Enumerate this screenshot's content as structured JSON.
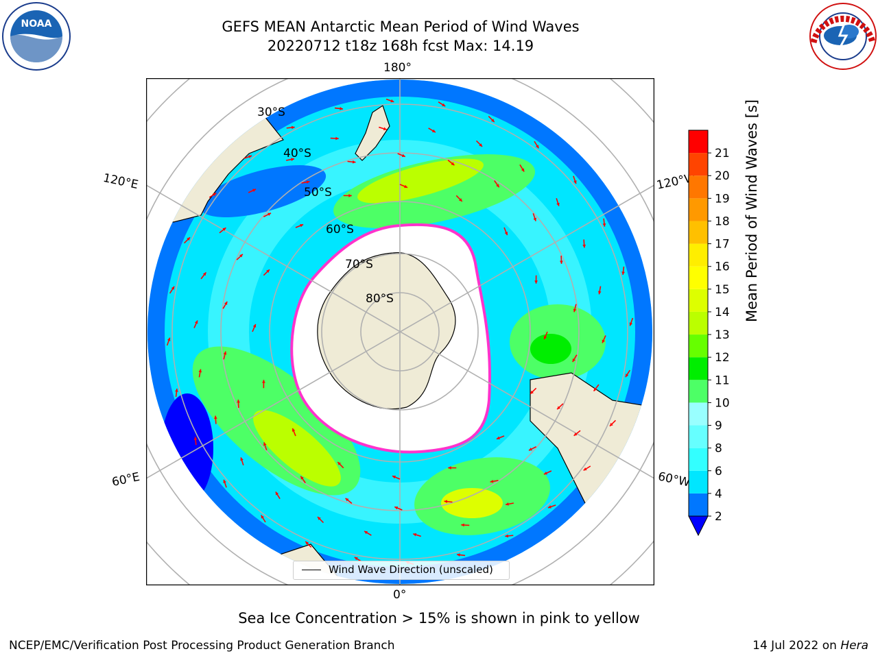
{
  "title": {
    "line1": "GEFS MEAN Antarctic Mean Period of Wind Waves",
    "line2": "20220712 t18z 168h fcst   Max: 14.19"
  },
  "logos": {
    "left": "NOAA",
    "left_ring": "NATIONAL OCEANIC AND ATMOSPHERIC ADMINISTRATION · U.S. DEPARTMENT OF COMMERCE",
    "right_ring": "NATIONAL WEATHER SERVICE"
  },
  "map": {
    "longitude_labels": [
      "180°",
      "120°E",
      "120°W",
      "60°E",
      "60°W",
      "0°"
    ],
    "latitude_labels": [
      "30°S",
      "40°S",
      "50°S",
      "60°S",
      "70°S",
      "80°S"
    ],
    "legend": "Wind Wave Direction (unscaled)",
    "colors": {
      "land": "#efebd6",
      "sea_ice": "#ffffff",
      "ice_edge": "#ff33cc",
      "arrow": "#ff0000",
      "grid": "#b0b0b0"
    }
  },
  "colorbar": {
    "label": "Mean Period of Wind Waves [s]",
    "ticks": [
      "2",
      "4",
      "6",
      "8",
      "9",
      "10",
      "11",
      "12",
      "13",
      "14",
      "15",
      "16",
      "17",
      "18",
      "19",
      "20",
      "21"
    ],
    "colors": [
      "#0077ff",
      "#00e6ff",
      "#33ffff",
      "#66ffff",
      "#99ffff",
      "#4dff66",
      "#00ee00",
      "#66ff00",
      "#bbff00",
      "#ddff00",
      "#ffff00",
      "#ffee00",
      "#ffc000",
      "#ff9900",
      "#ff7700",
      "#ff4400",
      "#ff0000"
    ],
    "extend_color": "#0000ff"
  },
  "note": "Sea Ice Concentration > 15% is shown in pink to yellow",
  "footer": {
    "left": "NCEP/EMC/Verification Post Processing Product Generation Branch",
    "right_date": "14 Jul 2022 on",
    "right_host": "Hera"
  }
}
